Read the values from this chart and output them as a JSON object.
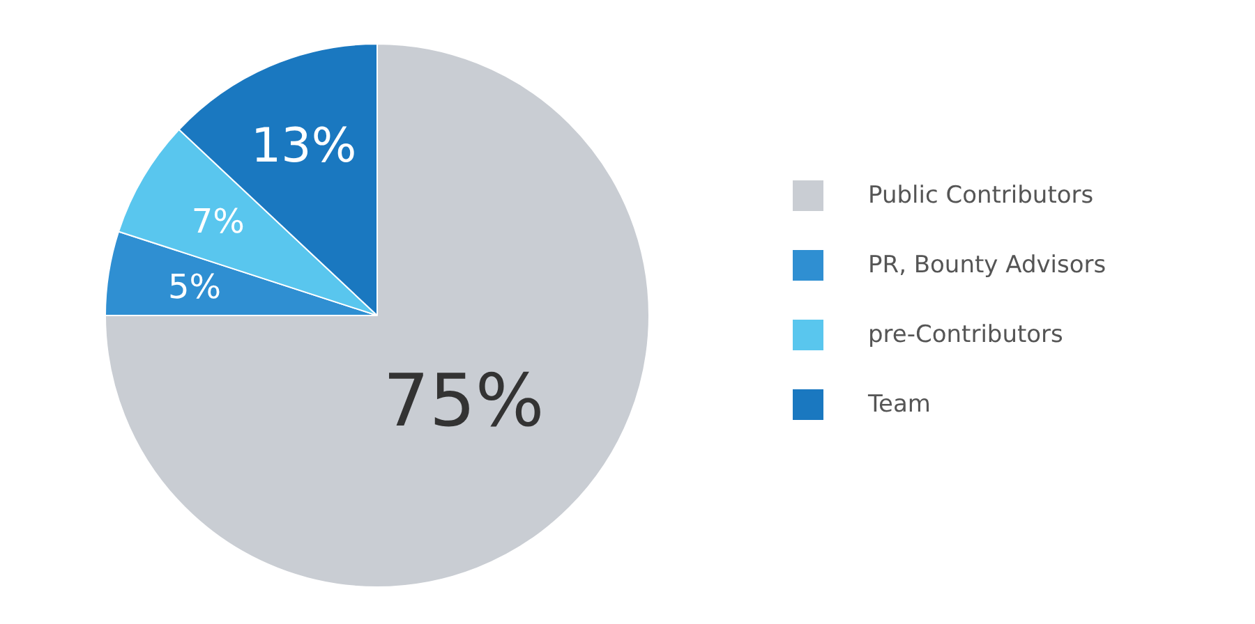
{
  "chart_data": {
    "type": "pie",
    "categories": [
      "Public Contributors",
      "PR, Bounty Advisors",
      "pre-Contributors",
      "Team"
    ],
    "values": [
      75,
      5,
      7,
      13
    ],
    "colors": [
      "#c9cdd3",
      "#2f8fd2",
      "#59c6ee",
      "#1a78c0"
    ],
    "value_labels": [
      "75%",
      "5%",
      "7%",
      "13%"
    ],
    "legend": "right"
  }
}
